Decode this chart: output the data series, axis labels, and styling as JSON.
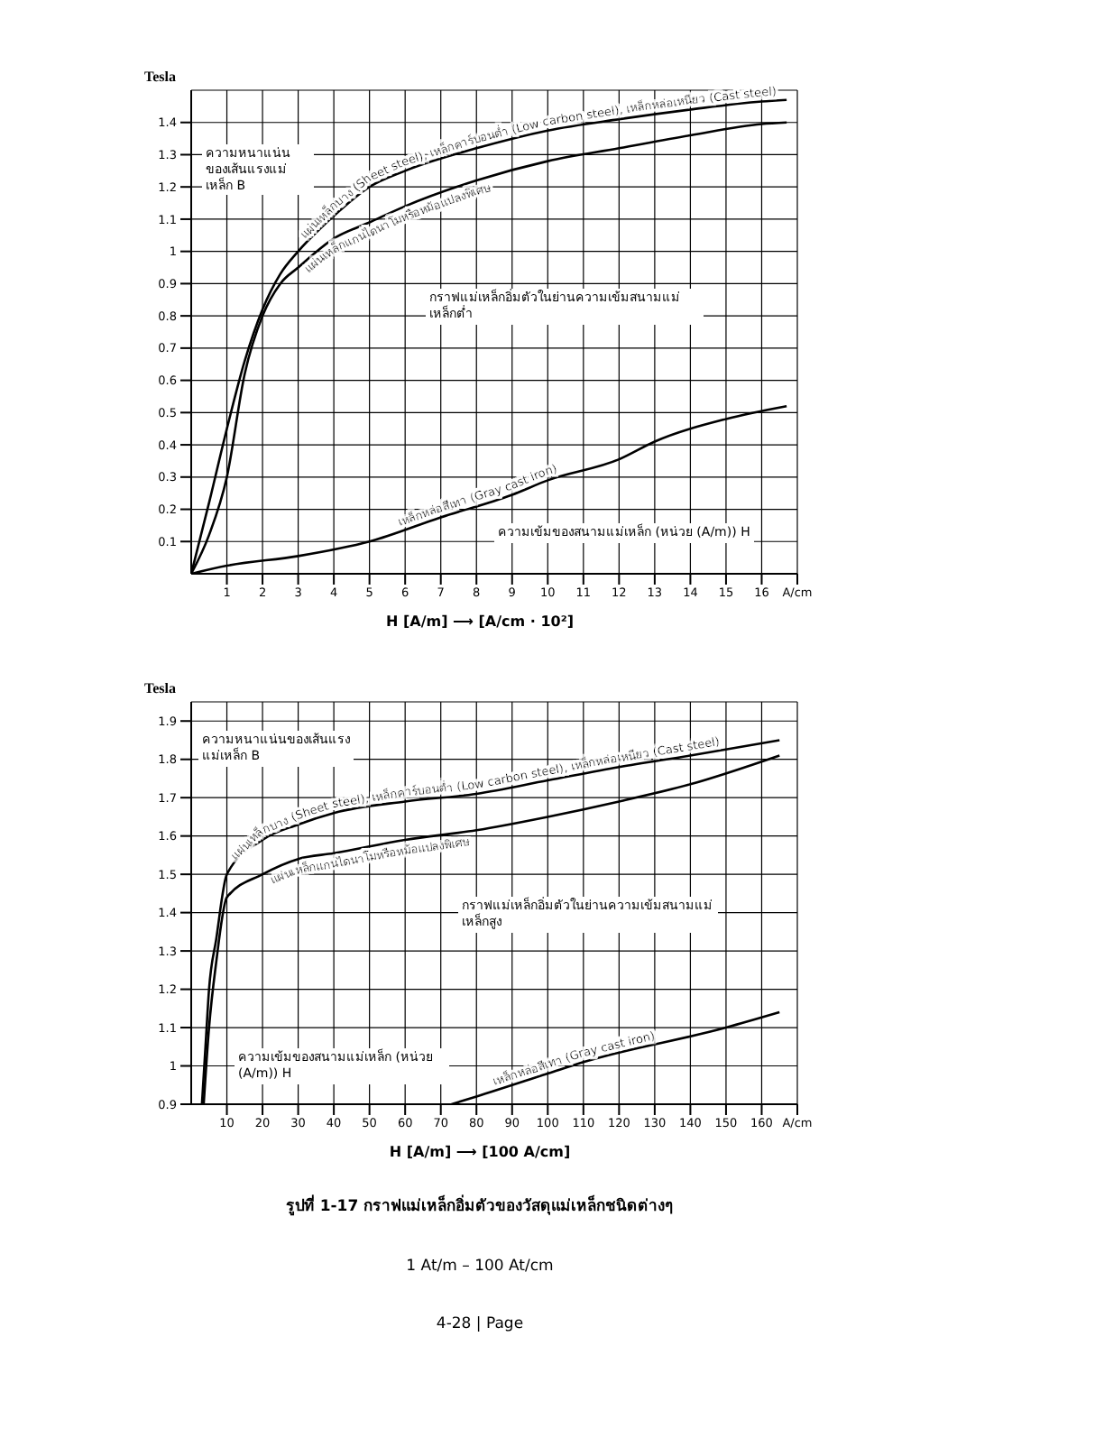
{
  "chart_data": [
    {
      "type": "line",
      "ylabel": "Tesla",
      "xlabel": "H [A/m] ⟶ [A/cm · 10²]",
      "xlim": [
        0,
        17
      ],
      "xticks": [
        1,
        2,
        3,
        4,
        5,
        6,
        7,
        8,
        9,
        10,
        11,
        12,
        13,
        14,
        15,
        16,
        {
          "value": 17,
          "label": "A/cm"
        }
      ],
      "ylim": [
        0,
        1.5
      ],
      "yticks": [
        0.1,
        0.2,
        0.3,
        0.4,
        0.5,
        0.6,
        0.7,
        0.8,
        0.9,
        1.0,
        1.1,
        1.2,
        1.3,
        1.4
      ],
      "grid": true,
      "annotations": [
        "ความหนาแน่นของเส้นแรงแม่เหล็ก B",
        "กราฟแม่เหล็กอิ่มตัวในย่านความเข้มสนามแม่เหล็กต่ำ",
        "ความเข้มของสนามแม่เหล็ก (หน่วย (A/m)) H"
      ],
      "series": [
        {
          "name": "แผ่นเหล็กบาง (Sheet steel), เหล็กคาร์บอนต่ำ (Low carbon steel), เหล็กหล่อเหนียว (Cast steel)",
          "color": "#000000",
          "x": [
            0,
            0.5,
            1,
            1.5,
            2,
            2.5,
            3,
            4,
            5,
            6,
            8,
            10,
            12,
            14,
            16,
            16.7
          ],
          "values": [
            0,
            0.22,
            0.45,
            0.66,
            0.82,
            0.93,
            1.0,
            1.11,
            1.2,
            1.25,
            1.32,
            1.375,
            1.41,
            1.44,
            1.465,
            1.47
          ]
        },
        {
          "name": "แผ่นเหล็กแกนไดนาโมหรือหม้อแปลงพิเศษ",
          "color": "#000000",
          "x": [
            0,
            0.5,
            1,
            1.5,
            2,
            2.5,
            3,
            4,
            5,
            6,
            8,
            10,
            12,
            14,
            16,
            16.7
          ],
          "values": [
            0,
            0.12,
            0.3,
            0.62,
            0.8,
            0.9,
            0.95,
            1.04,
            1.09,
            1.14,
            1.22,
            1.28,
            1.32,
            1.36,
            1.395,
            1.4
          ]
        },
        {
          "name": "เหล็กหล่อสีเทา (Gray cast iron)",
          "color": "#000000",
          "x": [
            0,
            1,
            3,
            5,
            7,
            9,
            10,
            12,
            13,
            15,
            16.7
          ],
          "values": [
            0,
            0.025,
            0.055,
            0.1,
            0.175,
            0.245,
            0.29,
            0.355,
            0.41,
            0.48,
            0.52
          ]
        }
      ]
    },
    {
      "type": "line",
      "ylabel": "Tesla",
      "xlabel": "H [A/m] ⟶ [100 A/cm]",
      "xlim": [
        0,
        170
      ],
      "xticks": [
        10,
        20,
        30,
        40,
        50,
        60,
        70,
        80,
        90,
        100,
        110,
        120,
        130,
        140,
        150,
        160,
        {
          "value": 170,
          "label": "A/cm"
        }
      ],
      "ylim": [
        0.9,
        1.95
      ],
      "yticks": [
        0.9,
        1.0,
        1.1,
        1.2,
        1.3,
        1.4,
        1.5,
        1.6,
        1.7,
        1.8,
        1.9
      ],
      "grid": true,
      "annotations": [
        "ความหนาแน่นของเส้นแรงแม่เหล็ก B",
        "กราฟแม่เหล็กอิ่มตัวในย่านความเข้มสนามแม่เหล็กสูง",
        "ความเข้มของสนามแม่เหล็ก (หน่วย (A/m)) H",
        "รูปที่ 1-17 กราฟแม่เหล็กอิ่มตัวของวัสดุแม่เหล็กชนิดต่างๆ",
        "1 At/m  –  100 At/cm",
        "4-28 | Page"
      ],
      "series": [
        {
          "name": "แผ่นเหล็กบาง (Sheet steel), เหล็กคาร์บอนต่ำ (Low carbon steel), เหล็กหล่อเหนียว (Cast steel)",
          "color": "#000000",
          "x": [
            3,
            4,
            5,
            7,
            10,
            20,
            30,
            40,
            60,
            80,
            100,
            120,
            140,
            165
          ],
          "values": [
            0.9,
            1.05,
            1.2,
            1.33,
            1.5,
            1.59,
            1.63,
            1.66,
            1.69,
            1.71,
            1.745,
            1.78,
            1.81,
            1.85
          ]
        },
        {
          "name": "แผ่นเหล็กแกนไดนาโมหรือหม้อแปลงพิเศษ",
          "color": "#000000",
          "x": [
            3.5,
            5,
            7,
            10,
            20,
            30,
            40,
            60,
            80,
            100,
            120,
            140,
            165
          ],
          "values": [
            0.9,
            1.1,
            1.27,
            1.44,
            1.5,
            1.54,
            1.555,
            1.59,
            1.615,
            1.65,
            1.69,
            1.735,
            1.81
          ]
        },
        {
          "name": "เหล็กหล่อสีเทา (Gray cast iron)",
          "color": "#000000",
          "x": [
            73,
            80,
            100,
            110,
            150,
            165
          ],
          "values": [
            0.9,
            0.92,
            0.98,
            1.01,
            1.1,
            1.14
          ]
        }
      ]
    }
  ]
}
